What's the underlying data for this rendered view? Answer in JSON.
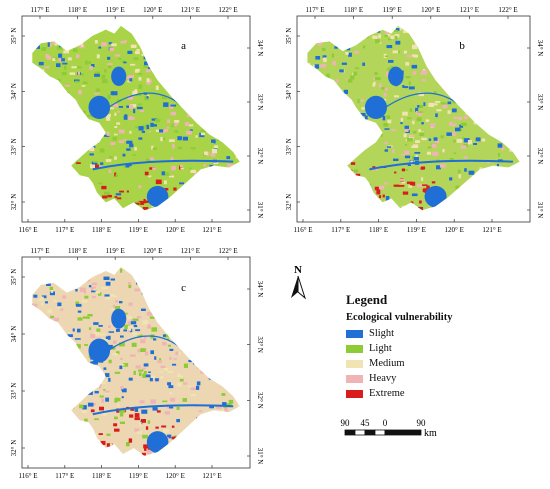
{
  "panels": [
    {
      "label": "a",
      "top_ticks": [
        "117° E",
        "118° E",
        "119° E",
        "120° E",
        "121° E",
        "122° E"
      ],
      "bottom_ticks": [
        "116° E",
        "117° E",
        "118° E",
        "119° E",
        "120° E",
        "121° E"
      ],
      "left_ticks": [
        "35° N",
        "34° N",
        "33° N",
        "32° N"
      ],
      "right_ticks": [
        "34° N",
        "33° N",
        "32° N",
        "31° N"
      ]
    },
    {
      "label": "b",
      "top_ticks": [
        "117° E",
        "118° E",
        "119° E",
        "120° E",
        "121° E",
        "122° E"
      ],
      "bottom_ticks": [
        "116° E",
        "117° E",
        "118° E",
        "119° E",
        "120° E",
        "121° E"
      ],
      "left_ticks": [
        "35° N",
        "34° N",
        "33° N",
        "32° N"
      ],
      "right_ticks": [
        "34° N",
        "33° N",
        "32° N",
        "31° N"
      ]
    },
    {
      "label": "c",
      "top_ticks": [
        "117° E",
        "118° E",
        "119° E",
        "120° E",
        "121° E",
        "122° E"
      ],
      "bottom_ticks": [
        "116° E",
        "117° E",
        "118° E",
        "119° E",
        "120° E",
        "121° E"
      ],
      "left_ticks": [
        "35° N",
        "34° N",
        "33° N",
        "32° N"
      ],
      "right_ticks": [
        "34° N",
        "33° N",
        "32° N",
        "31° N"
      ]
    }
  ],
  "north": "N",
  "legend": {
    "title": "Legend",
    "subtitle": "Ecological vulnerability",
    "items": [
      {
        "label": "Slight",
        "color": "#1f6fd6"
      },
      {
        "label": "Light",
        "color": "#8dcc34"
      },
      {
        "label": "Medium",
        "color": "#f2e3b3"
      },
      {
        "label": "Heavy",
        "color": "#f1b4b6"
      },
      {
        "label": "Extreme",
        "color": "#d91c1c"
      }
    ]
  },
  "scalebar": {
    "labels": [
      "90",
      "45",
      "0",
      "90"
    ],
    "unit": "km"
  },
  "colors": {
    "water": "#1f6fd6",
    "frame": "#333333"
  },
  "panel_colors": [
    {
      "base": "#a9d448",
      "speckle": [
        "#8dcc34",
        "#f2e3b3",
        "#1f6fd6",
        "#f1b4b6"
      ],
      "south": "#d91c1c"
    },
    {
      "base": "#b3d65a",
      "speckle": [
        "#8dcc34",
        "#f2e3b3",
        "#1f6fd6",
        "#f1b4b6"
      ],
      "south": "#d91c1c"
    },
    {
      "base": "#ecd7b2",
      "speckle": [
        "#f2e3b3",
        "#8dcc34",
        "#f1b4b6",
        "#1f6fd6"
      ],
      "south": "#d91c1c"
    }
  ]
}
